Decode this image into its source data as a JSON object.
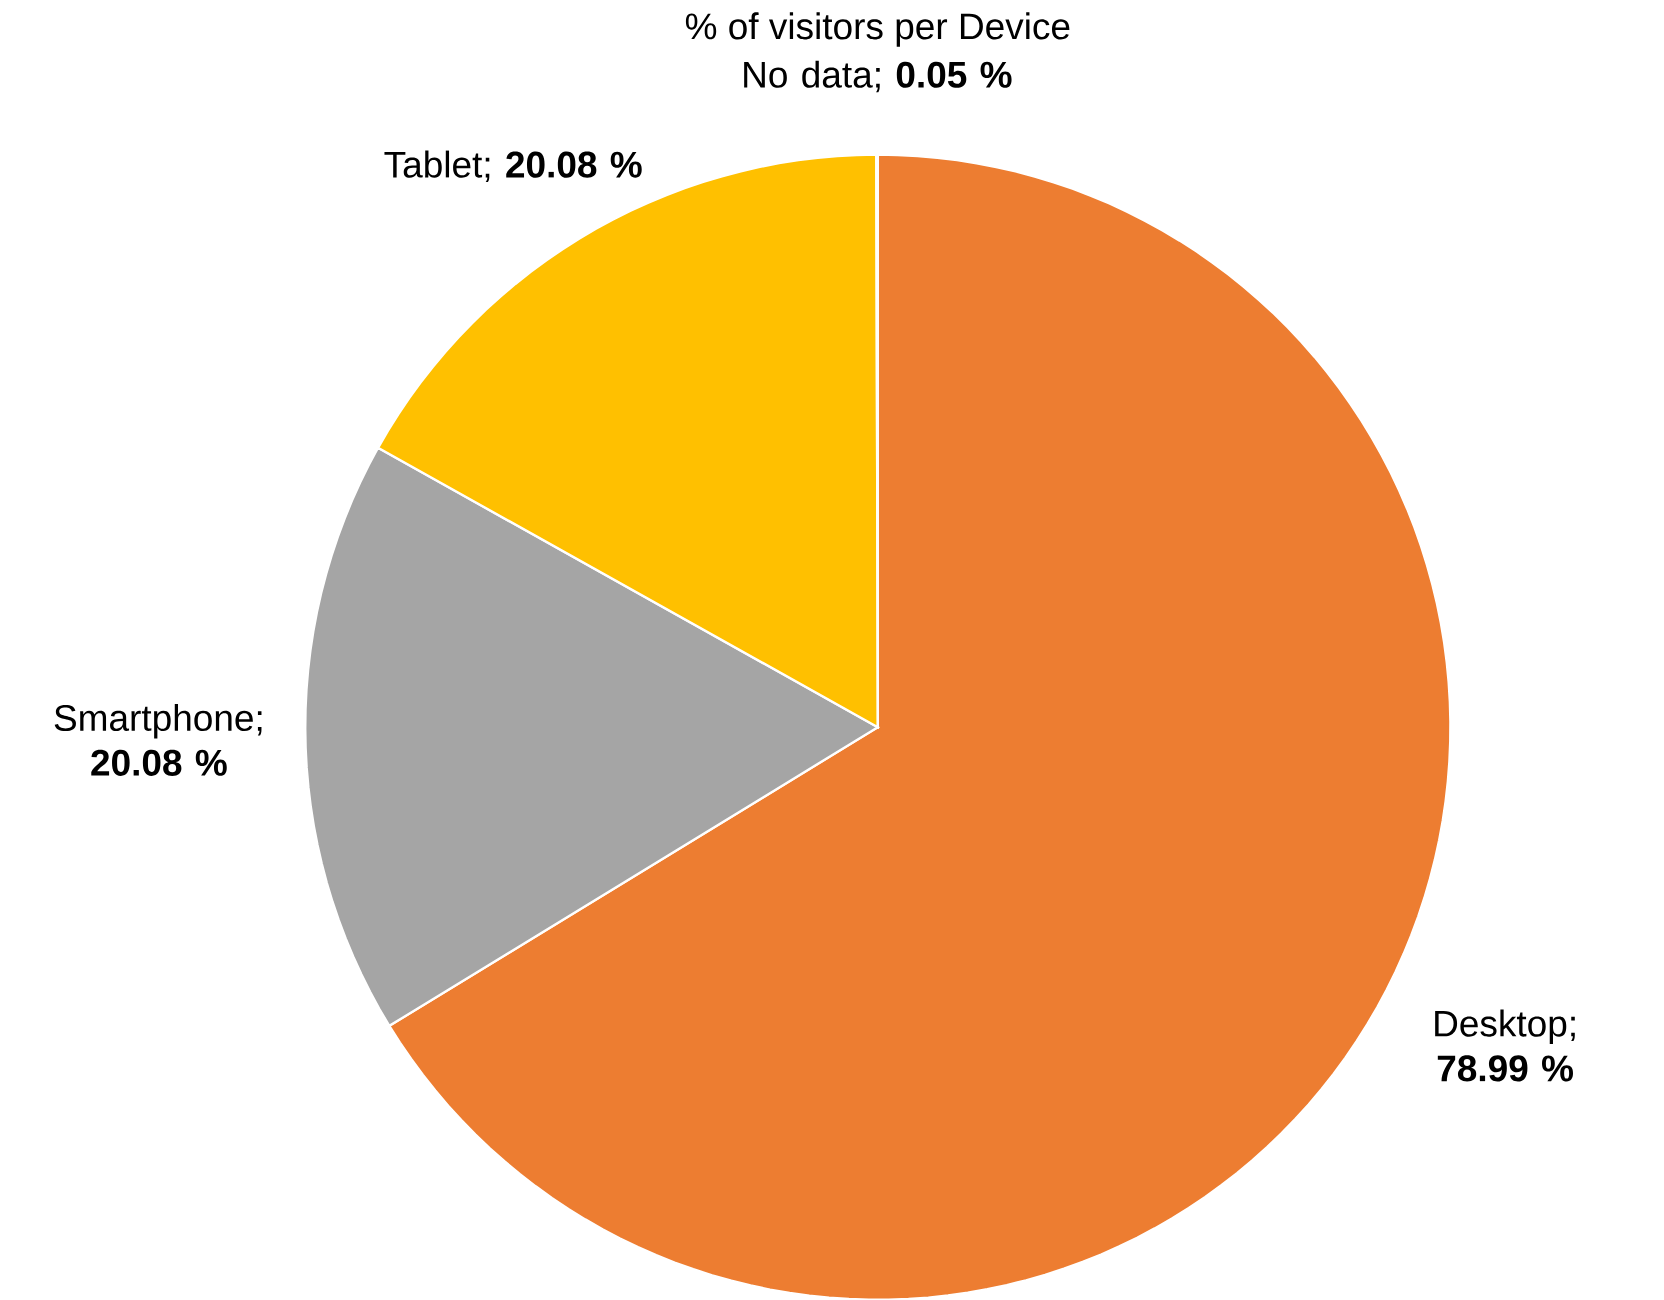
{
  "chart_data": {
    "type": "pie",
    "title": "% of visitors per Device",
    "categories": [
      "Desktop",
      "Smartphone",
      "Tablet",
      "No data"
    ],
    "values": [
      78.99,
      20.08,
      20.08,
      0.05
    ],
    "value_labels": [
      "; **78.99 %**",
      "; **20.08 %**",
      "; **20.08 %**",
      "; **0.05 %**"
    ],
    "colors": [
      "#ed7d31",
      "#a5a5a5",
      "#ffc000",
      "#4472c4"
    ]
  }
}
